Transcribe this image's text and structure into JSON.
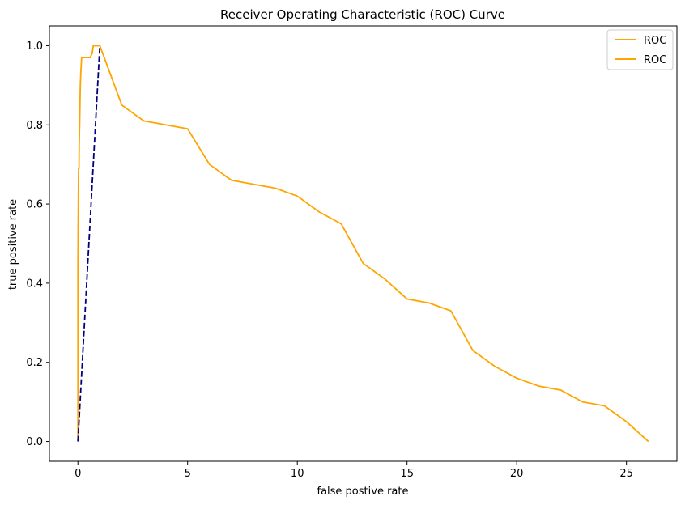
{
  "chart_data": {
    "type": "line",
    "title": "Receiver Operating Characteristic (ROC) Curve",
    "xlabel": "false postive rate",
    "ylabel": "true positive rate",
    "xlim": [
      -1.3,
      27.3
    ],
    "ylim": [
      -0.05,
      1.05
    ],
    "x_ticks": [
      0,
      5,
      10,
      15,
      20,
      25
    ],
    "y_ticks": [
      0.0,
      0.2,
      0.4,
      0.6,
      0.8,
      1.0
    ],
    "x_tick_labels": [
      "0",
      "5",
      "10",
      "15",
      "20",
      "25"
    ],
    "y_tick_labels": [
      "0.0",
      "0.2",
      "0.4",
      "0.6",
      "0.8",
      "1.0"
    ],
    "grid": false,
    "legend": {
      "placement": "top-right",
      "entries": [
        {
          "label": "ROC",
          "color": "#ffa500"
        },
        {
          "label": "ROC",
          "color": "#ffa500"
        }
      ]
    },
    "series": [
      {
        "color": "#ffa500",
        "style": "solid",
        "x": [
          0.0,
          0.0,
          0.01,
          0.02,
          0.03,
          0.05,
          0.06,
          0.07,
          0.08,
          0.1,
          0.11,
          0.13,
          0.15,
          0.17,
          0.2,
          0.22,
          0.28,
          0.3,
          0.4,
          0.55,
          0.65,
          0.7,
          0.75,
          0.9,
          1.0
        ],
        "y": [
          0.0,
          0.43,
          0.55,
          0.62,
          0.69,
          0.69,
          0.75,
          0.78,
          0.8,
          0.87,
          0.9,
          0.93,
          0.95,
          0.97,
          0.97,
          0.97,
          0.97,
          0.97,
          0.97,
          0.97,
          0.98,
          1.0,
          1.0,
          1.0,
          1.0
        ]
      },
      {
        "color": "#ffa500",
        "style": "solid",
        "x": [
          1,
          2,
          3,
          4,
          5,
          6,
          7,
          8,
          9,
          10,
          11,
          12,
          13,
          14,
          15,
          16,
          17,
          18,
          19,
          20,
          21,
          22,
          23,
          24,
          25,
          26
        ],
        "y": [
          1.0,
          0.85,
          0.81,
          0.8,
          0.79,
          0.7,
          0.66,
          0.65,
          0.64,
          0.62,
          0.58,
          0.55,
          0.45,
          0.41,
          0.36,
          0.35,
          0.33,
          0.23,
          0.19,
          0.16,
          0.14,
          0.13,
          0.1,
          0.09,
          0.05,
          0.0
        ]
      },
      {
        "color": "#000080",
        "style": "dashed",
        "x": [
          0,
          1
        ],
        "y": [
          0,
          1
        ]
      }
    ]
  }
}
